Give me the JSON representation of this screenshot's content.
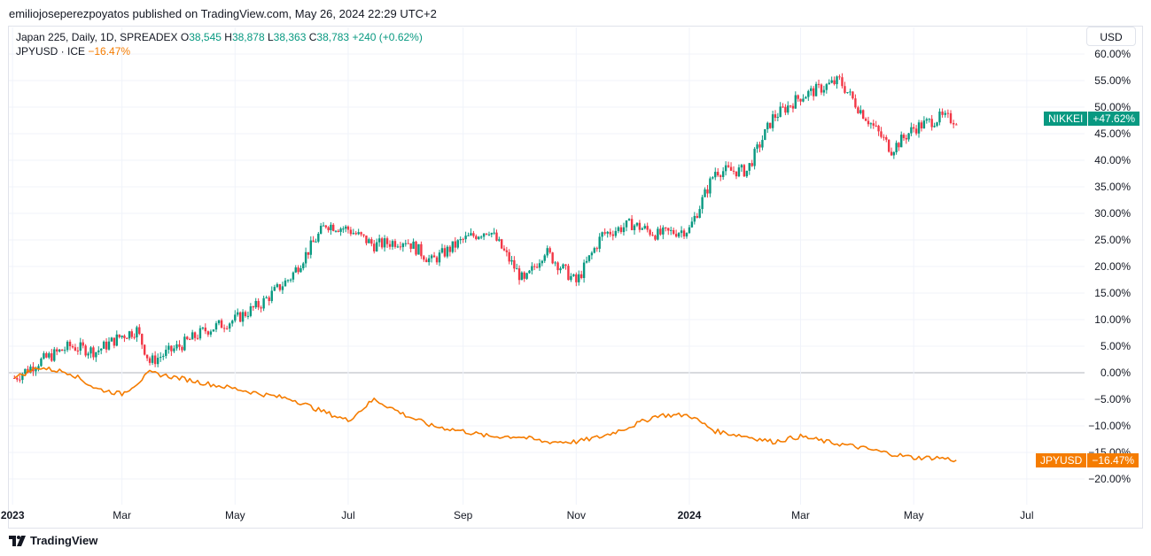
{
  "header": {
    "publish_line": "emiliojoseperezpoyatos published on TradingView.com, May 26, 2024 22:29 UTC+2"
  },
  "legend": {
    "main_symbol": "Japan 225, Daily, 1D, SPREADEX",
    "o_label": "O",
    "o_value": "38,545",
    "h_label": "H",
    "h_value": "38,878",
    "l_label": "L",
    "l_value": "38,363",
    "c_label": "C",
    "c_value": "38,783",
    "change": "+240 (+0.62%)",
    "compare_symbol": "JPYUSD · ICE",
    "compare_change": "−16.47%"
  },
  "currency_button": "USD",
  "price_tags": {
    "nikkei_label": "NIKKEI",
    "nikkei_value": "+47.62%",
    "jpyusd_label": "JPYUSD",
    "jpyusd_value": "−16.47%"
  },
  "footer": {
    "brand": "TradingView"
  },
  "colors": {
    "up": "#089981",
    "down": "#f23645",
    "compare": "#f57c00",
    "grid": "#f0f3fa",
    "zero": "#b2b5be"
  },
  "chart_data": {
    "type": "line",
    "x_tick_labels": [
      "2023",
      "Mar",
      "May",
      "Jul",
      "Sep",
      "Nov",
      "2024",
      "Mar",
      "May",
      "Jul"
    ],
    "y_tick_labels": [
      "60.00%",
      "55.00%",
      "50.00%",
      "45.00%",
      "40.00%",
      "35.00%",
      "30.00%",
      "25.00%",
      "20.00%",
      "15.00%",
      "10.00%",
      "5.00%",
      "0.00%",
      "−5.00%",
      "−10.00%",
      "−15.00%",
      "−20.00%"
    ],
    "ylim": [
      -22,
      62
    ],
    "y_unit": "percent change",
    "series": [
      {
        "name": "NIKKEI",
        "style": "candlestick",
        "last_value": 47.62,
        "dates": [
          "2023-01-02",
          "2023-01-15",
          "2023-02-01",
          "2023-02-15",
          "2023-03-01",
          "2023-03-09",
          "2023-03-16",
          "2023-04-01",
          "2023-04-15",
          "2023-05-01",
          "2023-05-15",
          "2023-05-31",
          "2023-06-19",
          "2023-07-01",
          "2023-07-15",
          "2023-08-01",
          "2023-08-15",
          "2023-09-01",
          "2023-09-15",
          "2023-10-04",
          "2023-10-15",
          "2023-11-01",
          "2023-11-15",
          "2023-12-01",
          "2023-12-15",
          "2024-01-01",
          "2024-01-15",
          "2024-02-01",
          "2024-02-15",
          "2024-03-01",
          "2024-03-22",
          "2024-04-01",
          "2024-04-19",
          "2024-05-01",
          "2024-05-15",
          "2024-05-24"
        ],
        "values": [
          -1,
          2,
          5,
          4,
          7,
          8,
          2,
          5,
          8,
          10,
          13,
          18,
          28,
          27,
          24,
          25,
          21,
          25,
          27,
          17,
          23,
          17,
          26,
          28,
          26,
          27,
          38,
          38,
          48,
          52,
          55,
          50,
          42,
          46,
          48,
          47.62
        ]
      },
      {
        "name": "JPYUSD",
        "style": "line",
        "last_value": -16.47,
        "dates": [
          "2023-01-02",
          "2023-01-15",
          "2023-02-01",
          "2023-02-15",
          "2023-03-01",
          "2023-03-09",
          "2023-03-16",
          "2023-04-01",
          "2023-04-15",
          "2023-05-01",
          "2023-05-15",
          "2023-06-01",
          "2023-06-15",
          "2023-07-01",
          "2023-07-15",
          "2023-08-01",
          "2023-08-15",
          "2023-09-01",
          "2023-09-15",
          "2023-10-01",
          "2023-10-15",
          "2023-11-01",
          "2023-11-15",
          "2023-12-01",
          "2023-12-15",
          "2024-01-01",
          "2024-01-15",
          "2024-02-01",
          "2024-02-15",
          "2024-03-01",
          "2024-03-15",
          "2024-04-01",
          "2024-04-15",
          "2024-05-01",
          "2024-05-15",
          "2024-05-24"
        ],
        "values": [
          -1,
          1,
          0,
          -3,
          -4,
          -2,
          0,
          -1,
          -2,
          -3,
          -4,
          -5,
          -7,
          -9,
          -5,
          -8,
          -10,
          -11,
          -12,
          -12,
          -13,
          -13,
          -12,
          -10,
          -8,
          -8,
          -11,
          -12,
          -13,
          -12,
          -13,
          -14,
          -15,
          -16,
          -16,
          -16.47
        ]
      }
    ]
  }
}
